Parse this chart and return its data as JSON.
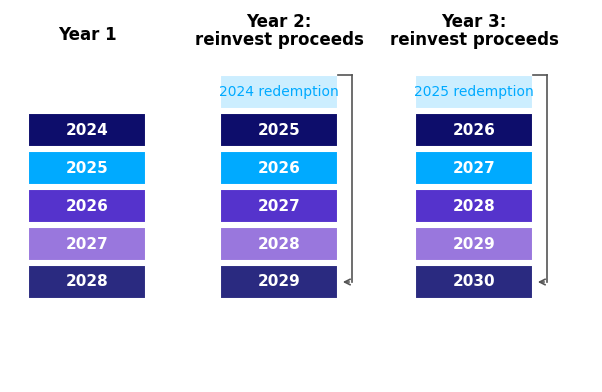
{
  "columns": [
    {
      "header_lines": [
        "Year 1"
      ],
      "bars": [
        {
          "label": "2024",
          "color": "#0d0d6b"
        },
        {
          "label": "2025",
          "color": "#00aaff"
        },
        {
          "label": "2026",
          "color": "#5533cc"
        },
        {
          "label": "2027",
          "color": "#9977dd"
        },
        {
          "label": "2028",
          "color": "#2a2a80"
        }
      ],
      "redemption": null
    },
    {
      "header_lines": [
        "Year 2:",
        "reinvest proceeds"
      ],
      "bars": [
        {
          "label": "2025",
          "color": "#0d0d6b"
        },
        {
          "label": "2026",
          "color": "#00aaff"
        },
        {
          "label": "2027",
          "color": "#5533cc"
        },
        {
          "label": "2028",
          "color": "#9977dd"
        },
        {
          "label": "2029",
          "color": "#2a2a80"
        }
      ],
      "redemption": {
        "label": "2024 redemption",
        "color": "#cceeff",
        "text_color": "#00aaff"
      }
    },
    {
      "header_lines": [
        "Year 3:",
        "reinvest proceeds"
      ],
      "bars": [
        {
          "label": "2026",
          "color": "#0d0d6b"
        },
        {
          "label": "2027",
          "color": "#00aaff"
        },
        {
          "label": "2028",
          "color": "#5533cc"
        },
        {
          "label": "2029",
          "color": "#9977dd"
        },
        {
          "label": "2030",
          "color": "#2a2a80"
        }
      ],
      "redemption": {
        "label": "2025 redemption",
        "color": "#cceeff",
        "text_color": "#00aaff"
      }
    }
  ],
  "fig_width": 6.02,
  "fig_height": 3.92,
  "dpi": 100,
  "background_color": "#ffffff",
  "bar_text_color": "#ffffff",
  "header_fontsize": 11,
  "bar_fontsize": 11,
  "arrow_color": "#555555"
}
